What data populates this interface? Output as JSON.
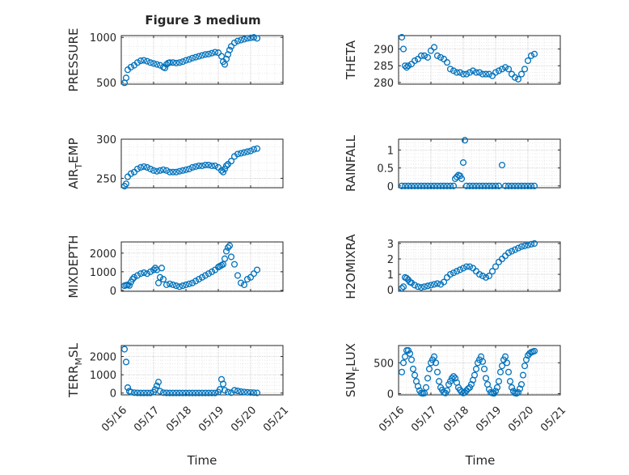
{
  "title": "Figure 3 medium",
  "xlabel": "Time",
  "x_tick_labels": [
    "05/16",
    "05/17",
    "05/18",
    "05/19",
    "05/20",
    "05/21"
  ],
  "marker_color": "#0072BD",
  "chart_data": [
    {
      "type": "scatter",
      "ylabel": "PRESSURE",
      "ylabel_parts": [
        "PRESSURE"
      ],
      "ylim": [
        480,
        1020
      ],
      "yticks": [
        500,
        1000
      ],
      "x": [
        0.1,
        0.15,
        0.2,
        0.3,
        0.4,
        0.5,
        0.6,
        0.7,
        0.8,
        0.9,
        1.0,
        1.1,
        1.2,
        1.3,
        1.35,
        1.4,
        1.45,
        1.5,
        1.6,
        1.7,
        1.8,
        1.9,
        2.0,
        2.1,
        2.2,
        2.3,
        2.4,
        2.5,
        2.6,
        2.7,
        2.8,
        2.9,
        3.0,
        3.1,
        3.15,
        3.2,
        3.25,
        3.3,
        3.35,
        3.4,
        3.5,
        3.6,
        3.7,
        3.8,
        3.9,
        4.0,
        4.1,
        4.2
      ],
      "y": [
        495,
        550,
        640,
        670,
        690,
        720,
        740,
        745,
        735,
        720,
        710,
        700,
        690,
        670,
        660,
        700,
        715,
        720,
        720,
        715,
        720,
        730,
        745,
        755,
        770,
        780,
        790,
        800,
        810,
        815,
        825,
        835,
        830,
        790,
        730,
        700,
        760,
        810,
        860,
        900,
        940,
        960,
        970,
        980,
        990,
        995,
        1000,
        990
      ]
    },
    {
      "type": "scatter",
      "ylabel": "THETA",
      "ylabel_parts": [
        "THETA"
      ],
      "ylim": [
        279.5,
        294
      ],
      "yticks": [
        280,
        285,
        290
      ],
      "x": [
        0.1,
        0.15,
        0.2,
        0.25,
        0.3,
        0.4,
        0.5,
        0.6,
        0.7,
        0.8,
        0.9,
        1.0,
        1.1,
        1.2,
        1.3,
        1.4,
        1.5,
        1.6,
        1.7,
        1.8,
        1.9,
        2.0,
        2.1,
        2.2,
        2.3,
        2.4,
        2.5,
        2.6,
        2.7,
        2.8,
        2.9,
        3.0,
        3.1,
        3.2,
        3.3,
        3.4,
        3.5,
        3.6,
        3.7,
        3.8,
        3.9,
        4.0,
        4.1,
        4.2
      ],
      "y": [
        293.5,
        290,
        285,
        284.5,
        285,
        285.5,
        286.5,
        287,
        288,
        288,
        287.5,
        289.5,
        290.5,
        288,
        287.5,
        287,
        286,
        284,
        283.5,
        283,
        283,
        282.5,
        282.5,
        283,
        283.5,
        283,
        283,
        282.5,
        282.5,
        282.5,
        282,
        283,
        283.5,
        284,
        284.5,
        284,
        282.5,
        281.5,
        281,
        282.5,
        284,
        286.5,
        288,
        288.5
      ]
    },
    {
      "type": "scatter",
      "ylabel": "AIR_TEMP",
      "ylabel_parts": [
        "AIR",
        "T",
        "EMP"
      ],
      "ylim": [
        238,
        300
      ],
      "yticks": [
        250,
        300
      ],
      "x": [
        0.1,
        0.15,
        0.2,
        0.3,
        0.4,
        0.5,
        0.6,
        0.7,
        0.8,
        0.9,
        1.0,
        1.1,
        1.2,
        1.3,
        1.4,
        1.5,
        1.6,
        1.7,
        1.8,
        1.9,
        2.0,
        2.1,
        2.2,
        2.3,
        2.4,
        2.5,
        2.6,
        2.7,
        2.8,
        2.9,
        3.0,
        3.1,
        3.15,
        3.2,
        3.25,
        3.3,
        3.4,
        3.5,
        3.6,
        3.7,
        3.8,
        3.9,
        4.0,
        4.1,
        4.2
      ],
      "y": [
        240,
        243,
        252,
        256,
        258,
        262,
        264,
        265,
        264,
        262,
        260,
        259,
        260,
        261,
        260,
        258,
        258,
        258,
        259,
        260,
        261,
        262,
        264,
        265,
        266,
        266,
        267,
        267,
        266,
        266,
        264,
        260,
        258,
        262,
        266,
        268,
        272,
        278,
        281,
        282,
        283,
        284,
        285,
        287,
        288
      ]
    },
    {
      "type": "scatter",
      "ylabel": "RAINFALL",
      "ylabel_parts": [
        "RAINFALL"
      ],
      "ylim": [
        -0.05,
        1.3
      ],
      "yticks": [
        0,
        0.5,
        1
      ],
      "x": [
        0.1,
        0.2,
        0.3,
        0.4,
        0.5,
        0.6,
        0.7,
        0.8,
        0.9,
        1.0,
        1.1,
        1.2,
        1.3,
        1.4,
        1.5,
        1.6,
        1.7,
        1.75,
        1.8,
        1.85,
        1.9,
        1.95,
        2.0,
        2.05,
        2.1,
        2.2,
        2.3,
        2.4,
        2.5,
        2.6,
        2.7,
        2.8,
        2.9,
        3.0,
        3.1,
        3.2,
        3.3,
        3.4,
        3.5,
        3.6,
        3.7,
        3.8,
        3.9,
        4.0,
        4.1,
        4.2
      ],
      "y": [
        0,
        0,
        0,
        0,
        0,
        0,
        0,
        0,
        0,
        0,
        0,
        0,
        0,
        0,
        0,
        0,
        0,
        0.2,
        0.25,
        0.3,
        0.28,
        0.2,
        0.65,
        1.27,
        0,
        0,
        0,
        0,
        0,
        0,
        0,
        0,
        0,
        0,
        0,
        0.58,
        0,
        0,
        0,
        0,
        0,
        0,
        0,
        0,
        0,
        0
      ]
    },
    {
      "type": "scatter",
      "ylabel": "MIXDEPTH",
      "ylabel_parts": [
        "MIXDEPTH"
      ],
      "ylim": [
        -50,
        2600
      ],
      "yticks": [
        0,
        1000,
        2000
      ],
      "x": [
        0.1,
        0.15,
        0.2,
        0.25,
        0.3,
        0.35,
        0.4,
        0.5,
        0.6,
        0.7,
        0.8,
        0.9,
        1.0,
        1.05,
        1.1,
        1.15,
        1.2,
        1.25,
        1.3,
        1.4,
        1.5,
        1.6,
        1.7,
        1.8,
        1.9,
        2.0,
        2.1,
        2.2,
        2.3,
        2.4,
        2.5,
        2.6,
        2.7,
        2.8,
        2.9,
        3.0,
        3.05,
        3.1,
        3.15,
        3.2,
        3.25,
        3.3,
        3.35,
        3.4,
        3.5,
        3.6,
        3.7,
        3.8,
        3.9,
        4.0,
        4.1,
        4.2
      ],
      "y": [
        250,
        280,
        300,
        260,
        450,
        600,
        700,
        800,
        900,
        950,
        900,
        1000,
        1100,
        1200,
        1100,
        400,
        700,
        1200,
        600,
        300,
        350,
        300,
        250,
        200,
        250,
        300,
        350,
        400,
        500,
        600,
        700,
        800,
        900,
        1000,
        1100,
        1250,
        1300,
        1350,
        1400,
        1700,
        2100,
        2300,
        2400,
        1800,
        1400,
        800,
        400,
        300,
        600,
        700,
        900,
        1100
      ]
    },
    {
      "type": "scatter",
      "ylabel": "H2OMIXRA",
      "ylabel_parts": [
        "H2OMIXRA"
      ],
      "ylim": [
        -0.1,
        3.1
      ],
      "yticks": [
        0,
        1,
        2,
        3
      ],
      "x": [
        0.1,
        0.15,
        0.2,
        0.25,
        0.3,
        0.35,
        0.4,
        0.5,
        0.6,
        0.7,
        0.8,
        0.9,
        1.0,
        1.1,
        1.2,
        1.3,
        1.4,
        1.5,
        1.6,
        1.7,
        1.8,
        1.9,
        2.0,
        2.1,
        2.2,
        2.3,
        2.4,
        2.5,
        2.6,
        2.7,
        2.8,
        2.9,
        3.0,
        3.1,
        3.2,
        3.3,
        3.4,
        3.5,
        3.6,
        3.7,
        3.8,
        3.9,
        4.0,
        4.1,
        4.2
      ],
      "y": [
        0.1,
        0.2,
        0.8,
        0.75,
        0.65,
        0.5,
        0.45,
        0.3,
        0.2,
        0.15,
        0.2,
        0.25,
        0.3,
        0.35,
        0.4,
        0.35,
        0.5,
        0.8,
        1.0,
        1.1,
        1.2,
        1.3,
        1.4,
        1.5,
        1.5,
        1.4,
        1.2,
        1.0,
        0.9,
        0.8,
        0.9,
        1.2,
        1.5,
        1.8,
        2.0,
        2.2,
        2.4,
        2.5,
        2.6,
        2.7,
        2.8,
        2.85,
        2.9,
        2.95,
        3.0
      ]
    },
    {
      "type": "scatter",
      "ylabel": "TERR_MSL",
      "ylabel_parts": [
        "TERR",
        "M",
        "SL"
      ],
      "ylim": [
        -100,
        2600
      ],
      "yticks": [
        0,
        1000,
        2000
      ],
      "x": [
        0.1,
        0.15,
        0.2,
        0.25,
        0.3,
        0.4,
        0.5,
        0.6,
        0.7,
        0.8,
        0.9,
        1.0,
        1.05,
        1.1,
        1.15,
        1.2,
        1.3,
        1.4,
        1.5,
        1.6,
        1.7,
        1.8,
        1.9,
        2.0,
        2.1,
        2.2,
        2.3,
        2.4,
        2.5,
        2.6,
        2.7,
        2.8,
        2.9,
        3.0,
        3.05,
        3.1,
        3.15,
        3.2,
        3.3,
        3.4,
        3.5,
        3.6,
        3.7,
        3.8,
        3.9,
        4.0,
        4.1,
        4.2
      ],
      "y": [
        2400,
        1700,
        300,
        100,
        50,
        20,
        10,
        5,
        5,
        5,
        5,
        50,
        200,
        400,
        600,
        100,
        20,
        10,
        5,
        5,
        5,
        5,
        5,
        5,
        5,
        5,
        5,
        5,
        5,
        5,
        5,
        5,
        5,
        50,
        200,
        750,
        500,
        150,
        50,
        20,
        150,
        120,
        80,
        60,
        40,
        30,
        20,
        10
      ]
    },
    {
      "type": "scatter",
      "ylabel": "SUN_FLUX",
      "ylabel_parts": [
        "SUN",
        "F",
        "LUX"
      ],
      "ylim": [
        -20,
        780
      ],
      "yticks": [
        0,
        500
      ],
      "x": [
        0.1,
        0.15,
        0.2,
        0.25,
        0.3,
        0.35,
        0.4,
        0.45,
        0.5,
        0.55,
        0.6,
        0.65,
        0.7,
        0.75,
        0.8,
        0.85,
        0.9,
        0.95,
        1.0,
        1.05,
        1.1,
        1.15,
        1.2,
        1.25,
        1.3,
        1.35,
        1.4,
        1.45,
        1.5,
        1.55,
        1.6,
        1.65,
        1.7,
        1.75,
        1.8,
        1.85,
        1.9,
        1.95,
        2.0,
        2.05,
        2.1,
        2.15,
        2.2,
        2.25,
        2.3,
        2.35,
        2.4,
        2.45,
        2.5,
        2.55,
        2.6,
        2.65,
        2.7,
        2.75,
        2.8,
        2.85,
        2.9,
        2.95,
        3.0,
        3.05,
        3.1,
        3.15,
        3.2,
        3.25,
        3.3,
        3.35,
        3.4,
        3.45,
        3.5,
        3.55,
        3.6,
        3.65,
        3.7,
        3.75,
        3.8,
        3.85,
        3.9,
        3.95,
        4.0,
        4.05,
        4.1,
        4.15,
        4.2
      ],
      "y": [
        350,
        500,
        600,
        700,
        700,
        650,
        550,
        400,
        300,
        200,
        120,
        50,
        10,
        5,
        10,
        100,
        250,
        400,
        500,
        550,
        600,
        500,
        350,
        200,
        100,
        60,
        20,
        10,
        50,
        150,
        200,
        250,
        280,
        250,
        180,
        100,
        60,
        30,
        10,
        20,
        50,
        80,
        100,
        150,
        220,
        300,
        400,
        500,
        550,
        600,
        520,
        400,
        250,
        150,
        70,
        20,
        10,
        5,
        40,
        100,
        200,
        350,
        450,
        550,
        600,
        500,
        350,
        200,
        100,
        40,
        10,
        5,
        20,
        80,
        150,
        300,
        450,
        550,
        620,
        650,
        670,
        680,
        690
      ]
    }
  ]
}
